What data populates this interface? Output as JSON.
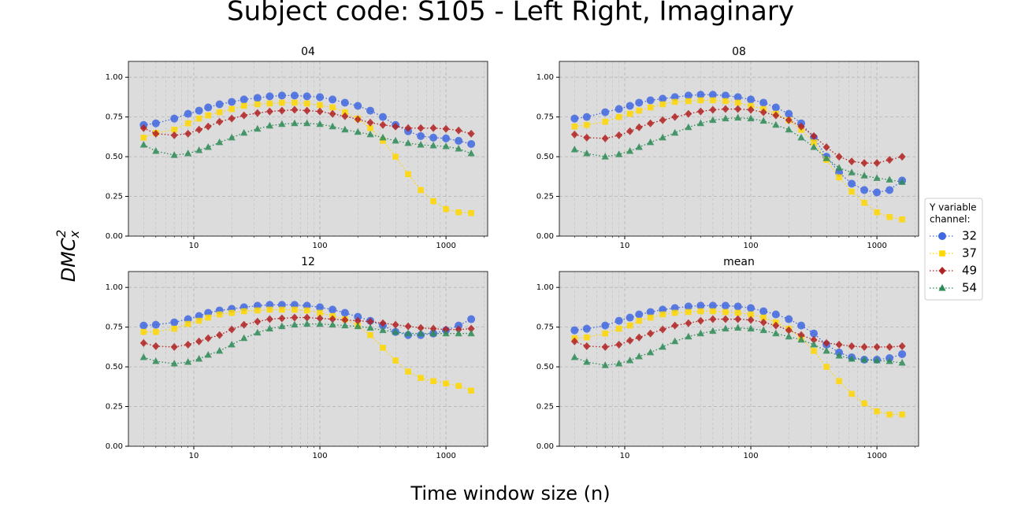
{
  "figure": {
    "title": "Subject code: S105 - Left Right, Imaginary",
    "xlabel": "Time window size (n)",
    "ylabel": {
      "text": "DMC",
      "subscript": "x",
      "superscript": "2"
    },
    "legend_title": [
      "Y variable",
      "channel:"
    ]
  },
  "chart_data": [
    {
      "type": "line",
      "title": "04",
      "xscale": "log",
      "grid": true,
      "background": "#dcdcdc",
      "xlim": [
        3.03,
        2140
      ],
      "ylim": [
        0,
        1.1
      ],
      "xticks": [
        10,
        100,
        1000
      ],
      "xminorticks": [
        4,
        5,
        6,
        7,
        8,
        9,
        20,
        30,
        40,
        50,
        60,
        70,
        80,
        90,
        200,
        300,
        400,
        500,
        600,
        700,
        800,
        900,
        2000
      ],
      "yticks": [
        {
          "value": 0,
          "label": "0.00"
        },
        {
          "value": 0.25,
          "label": "0.25"
        },
        {
          "value": 0.5,
          "label": "0.50"
        },
        {
          "value": 0.75,
          "label": "0.75"
        },
        {
          "value": 1,
          "label": "1.00"
        }
      ],
      "x": [
        4,
        5,
        7,
        9,
        11,
        13,
        16,
        20,
        25,
        32,
        40,
        50,
        63,
        79,
        100,
        126,
        158,
        200,
        251,
        316,
        398,
        501,
        631,
        794,
        1000,
        1259,
        1585
      ],
      "series": [
        {
          "name": "32",
          "color": "#4169e1",
          "marker": "circle",
          "values": [
            0.7,
            0.71,
            0.74,
            0.77,
            0.79,
            0.81,
            0.83,
            0.845,
            0.86,
            0.87,
            0.88,
            0.885,
            0.885,
            0.88,
            0.875,
            0.86,
            0.84,
            0.82,
            0.79,
            0.75,
            0.7,
            0.66,
            0.63,
            0.62,
            0.615,
            0.6,
            0.58
          ]
        },
        {
          "name": "37",
          "color": "#ffd700",
          "marker": "square",
          "values": [
            0.62,
            0.65,
            0.67,
            0.71,
            0.74,
            0.76,
            0.78,
            0.8,
            0.82,
            0.83,
            0.835,
            0.84,
            0.84,
            0.835,
            0.825,
            0.81,
            0.78,
            0.74,
            0.68,
            0.6,
            0.5,
            0.39,
            0.29,
            0.22,
            0.17,
            0.15,
            0.145
          ]
        },
        {
          "name": "49",
          "color": "#b22222",
          "marker": "diamond",
          "values": [
            0.68,
            0.645,
            0.635,
            0.645,
            0.67,
            0.69,
            0.72,
            0.74,
            0.76,
            0.775,
            0.785,
            0.79,
            0.795,
            0.79,
            0.785,
            0.77,
            0.755,
            0.735,
            0.715,
            0.7,
            0.69,
            0.68,
            0.68,
            0.68,
            0.675,
            0.665,
            0.645
          ]
        },
        {
          "name": "54",
          "color": "#2e8b57",
          "marker": "triangle",
          "values": [
            0.575,
            0.535,
            0.51,
            0.52,
            0.54,
            0.56,
            0.59,
            0.62,
            0.65,
            0.675,
            0.695,
            0.705,
            0.71,
            0.71,
            0.705,
            0.69,
            0.67,
            0.655,
            0.64,
            0.62,
            0.6,
            0.585,
            0.575,
            0.57,
            0.565,
            0.55,
            0.52
          ]
        }
      ]
    },
    {
      "type": "line",
      "title": "08",
      "xscale": "log",
      "grid": true,
      "background": "#dcdcdc",
      "xlim": [
        3.03,
        2140
      ],
      "ylim": [
        0,
        1.1
      ],
      "xticks": [
        10,
        100,
        1000
      ],
      "xminorticks": [
        4,
        5,
        6,
        7,
        8,
        9,
        20,
        30,
        40,
        50,
        60,
        70,
        80,
        90,
        200,
        300,
        400,
        500,
        600,
        700,
        800,
        900,
        2000
      ],
      "yticks": [
        {
          "value": 0,
          "label": "0.00"
        },
        {
          "value": 0.25,
          "label": "0.25"
        },
        {
          "value": 0.5,
          "label": "0.50"
        },
        {
          "value": 0.75,
          "label": "0.75"
        },
        {
          "value": 1,
          "label": "1.00"
        }
      ],
      "x": [
        4,
        5,
        7,
        9,
        11,
        13,
        16,
        20,
        25,
        32,
        40,
        50,
        63,
        79,
        100,
        126,
        158,
        200,
        251,
        316,
        398,
        501,
        631,
        794,
        1000,
        1259,
        1585
      ],
      "series": [
        {
          "name": "32",
          "color": "#4169e1",
          "marker": "circle",
          "values": [
            0.74,
            0.75,
            0.78,
            0.8,
            0.82,
            0.84,
            0.855,
            0.865,
            0.875,
            0.885,
            0.89,
            0.89,
            0.885,
            0.875,
            0.86,
            0.84,
            0.81,
            0.77,
            0.71,
            0.62,
            0.5,
            0.4,
            0.33,
            0.29,
            0.275,
            0.29,
            0.35
          ]
        },
        {
          "name": "37",
          "color": "#ffd700",
          "marker": "square",
          "values": [
            0.69,
            0.7,
            0.72,
            0.75,
            0.77,
            0.79,
            0.81,
            0.83,
            0.845,
            0.85,
            0.855,
            0.855,
            0.85,
            0.84,
            0.82,
            0.8,
            0.77,
            0.73,
            0.67,
            0.59,
            0.48,
            0.37,
            0.28,
            0.21,
            0.15,
            0.12,
            0.105
          ]
        },
        {
          "name": "49",
          "color": "#b22222",
          "marker": "diamond",
          "values": [
            0.64,
            0.62,
            0.615,
            0.635,
            0.66,
            0.685,
            0.71,
            0.73,
            0.75,
            0.77,
            0.785,
            0.795,
            0.8,
            0.8,
            0.795,
            0.78,
            0.76,
            0.73,
            0.69,
            0.63,
            0.56,
            0.5,
            0.47,
            0.46,
            0.46,
            0.48,
            0.5
          ]
        },
        {
          "name": "54",
          "color": "#2e8b57",
          "marker": "triangle",
          "values": [
            0.545,
            0.52,
            0.5,
            0.515,
            0.535,
            0.56,
            0.59,
            0.62,
            0.65,
            0.685,
            0.71,
            0.73,
            0.74,
            0.745,
            0.74,
            0.725,
            0.7,
            0.67,
            0.62,
            0.56,
            0.49,
            0.43,
            0.4,
            0.38,
            0.365,
            0.355,
            0.34
          ]
        }
      ]
    },
    {
      "type": "line",
      "title": "12",
      "xscale": "log",
      "grid": true,
      "background": "#dcdcdc",
      "xlim": [
        3.03,
        2140
      ],
      "ylim": [
        0,
        1.1
      ],
      "xticks": [
        10,
        100,
        1000
      ],
      "xminorticks": [
        4,
        5,
        6,
        7,
        8,
        9,
        20,
        30,
        40,
        50,
        60,
        70,
        80,
        90,
        200,
        300,
        400,
        500,
        600,
        700,
        800,
        900,
        2000
      ],
      "yticks": [
        {
          "value": 0,
          "label": "0.00"
        },
        {
          "value": 0.25,
          "label": "0.25"
        },
        {
          "value": 0.5,
          "label": "0.50"
        },
        {
          "value": 0.75,
          "label": "0.75"
        },
        {
          "value": 1,
          "label": "1.00"
        }
      ],
      "x": [
        4,
        5,
        7,
        9,
        11,
        13,
        16,
        20,
        25,
        32,
        40,
        50,
        63,
        79,
        100,
        126,
        158,
        200,
        251,
        316,
        398,
        501,
        631,
        794,
        1000,
        1259,
        1585
      ],
      "series": [
        {
          "name": "32",
          "color": "#4169e1",
          "marker": "circle",
          "values": [
            0.76,
            0.765,
            0.78,
            0.8,
            0.82,
            0.84,
            0.855,
            0.865,
            0.875,
            0.885,
            0.89,
            0.89,
            0.89,
            0.885,
            0.875,
            0.86,
            0.84,
            0.815,
            0.79,
            0.76,
            0.72,
            0.7,
            0.7,
            0.71,
            0.73,
            0.76,
            0.8
          ]
        },
        {
          "name": "37",
          "color": "#ffd700",
          "marker": "square",
          "values": [
            0.72,
            0.72,
            0.74,
            0.77,
            0.79,
            0.81,
            0.83,
            0.84,
            0.85,
            0.855,
            0.86,
            0.86,
            0.86,
            0.855,
            0.84,
            0.82,
            0.8,
            0.76,
            0.7,
            0.62,
            0.54,
            0.47,
            0.43,
            0.41,
            0.395,
            0.38,
            0.35
          ]
        },
        {
          "name": "49",
          "color": "#b22222",
          "marker": "diamond",
          "values": [
            0.65,
            0.63,
            0.625,
            0.64,
            0.66,
            0.68,
            0.7,
            0.735,
            0.765,
            0.785,
            0.8,
            0.805,
            0.81,
            0.81,
            0.805,
            0.8,
            0.795,
            0.79,
            0.785,
            0.775,
            0.765,
            0.755,
            0.745,
            0.74,
            0.735,
            0.735,
            0.74
          ]
        },
        {
          "name": "54",
          "color": "#2e8b57",
          "marker": "triangle",
          "values": [
            0.56,
            0.535,
            0.52,
            0.53,
            0.55,
            0.575,
            0.6,
            0.64,
            0.68,
            0.715,
            0.74,
            0.755,
            0.765,
            0.77,
            0.77,
            0.765,
            0.76,
            0.755,
            0.745,
            0.73,
            0.72,
            0.71,
            0.71,
            0.71,
            0.71,
            0.71,
            0.71
          ]
        }
      ]
    },
    {
      "type": "line",
      "title": "mean",
      "xscale": "log",
      "grid": true,
      "background": "#dcdcdc",
      "xlim": [
        3.03,
        2140
      ],
      "ylim": [
        0,
        1.1
      ],
      "xticks": [
        10,
        100,
        1000
      ],
      "xminorticks": [
        4,
        5,
        6,
        7,
        8,
        9,
        20,
        30,
        40,
        50,
        60,
        70,
        80,
        90,
        200,
        300,
        400,
        500,
        600,
        700,
        800,
        900,
        2000
      ],
      "yticks": [
        {
          "value": 0,
          "label": "0.00"
        },
        {
          "value": 0.25,
          "label": "0.25"
        },
        {
          "value": 0.5,
          "label": "0.50"
        },
        {
          "value": 0.75,
          "label": "0.75"
        },
        {
          "value": 1,
          "label": "1.00"
        }
      ],
      "x": [
        4,
        5,
        7,
        9,
        11,
        13,
        16,
        20,
        25,
        32,
        40,
        50,
        63,
        79,
        100,
        126,
        158,
        200,
        251,
        316,
        398,
        501,
        631,
        794,
        1000,
        1259,
        1585
      ],
      "series": [
        {
          "name": "32",
          "color": "#4169e1",
          "marker": "circle",
          "values": [
            0.73,
            0.74,
            0.76,
            0.79,
            0.81,
            0.83,
            0.845,
            0.86,
            0.87,
            0.88,
            0.885,
            0.885,
            0.885,
            0.88,
            0.87,
            0.85,
            0.83,
            0.8,
            0.76,
            0.71,
            0.64,
            0.59,
            0.56,
            0.545,
            0.545,
            0.555,
            0.58
          ]
        },
        {
          "name": "37",
          "color": "#ffd700",
          "marker": "square",
          "values": [
            0.68,
            0.685,
            0.71,
            0.74,
            0.76,
            0.79,
            0.81,
            0.83,
            0.84,
            0.845,
            0.85,
            0.85,
            0.845,
            0.84,
            0.83,
            0.81,
            0.78,
            0.74,
            0.68,
            0.6,
            0.5,
            0.41,
            0.33,
            0.27,
            0.22,
            0.2,
            0.2
          ]
        },
        {
          "name": "49",
          "color": "#b22222",
          "marker": "diamond",
          "values": [
            0.66,
            0.63,
            0.625,
            0.64,
            0.665,
            0.685,
            0.71,
            0.735,
            0.76,
            0.775,
            0.79,
            0.8,
            0.8,
            0.8,
            0.795,
            0.78,
            0.76,
            0.73,
            0.7,
            0.67,
            0.65,
            0.64,
            0.63,
            0.625,
            0.625,
            0.625,
            0.63
          ]
        },
        {
          "name": "54",
          "color": "#2e8b57",
          "marker": "triangle",
          "values": [
            0.56,
            0.53,
            0.51,
            0.52,
            0.54,
            0.565,
            0.59,
            0.625,
            0.66,
            0.69,
            0.71,
            0.725,
            0.74,
            0.745,
            0.74,
            0.73,
            0.71,
            0.69,
            0.67,
            0.64,
            0.6,
            0.57,
            0.55,
            0.545,
            0.54,
            0.535,
            0.525
          ]
        }
      ]
    }
  ]
}
